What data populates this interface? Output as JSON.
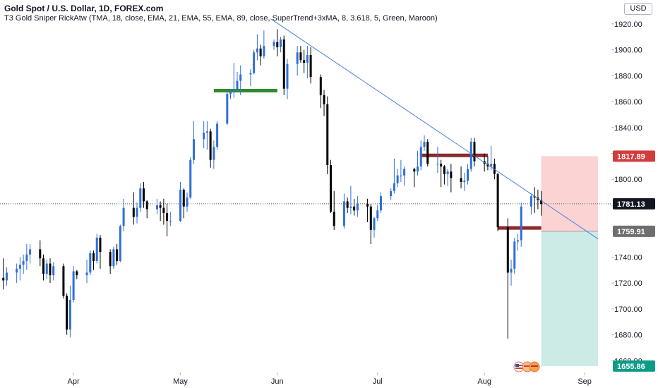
{
  "header": {
    "symbol": "Gold Spot / U.S. Dollar, 1D, FOREX.com",
    "indicator": "T3 Gold Sniper RickAtw (TMA, 18, close, EMA, 21, EMA, 55, EMA, 89, close, SuperTrend+3xMA, 8, 3.618, 5, Green, Maroon)"
  },
  "currency": "USD",
  "colors": {
    "up": "#2f6fd8",
    "down": "#000000",
    "trendline": "#4a7fe0",
    "green_level": "#2e8b2e",
    "resistance": "#8b2a2a",
    "stop_zone": "#fbd3d3",
    "target_zone": "#cdebe6",
    "price_tag": "#131722",
    "stop_tag": "#d13c3c",
    "entry_tag": "#6e6e6e",
    "target_tag": "#0b9c87"
  },
  "chart_data": {
    "type": "candlestick",
    "y_ticks": [
      "1920.00",
      "1900.00",
      "1880.00",
      "1860.00",
      "1840.00",
      "1820.00",
      "1800.00",
      "1780.00",
      "1760.00",
      "1740.00",
      "1720.00",
      "1700.00",
      "1680.00",
      "1660.00"
    ],
    "ylim": [
      1652,
      1933
    ],
    "x_ticks": [
      {
        "label": "Apr",
        "date": "2021-04-01"
      },
      {
        "label": "May",
        "date": "2021-05-03"
      },
      {
        "label": "Jun",
        "date": "2021-06-01"
      },
      {
        "label": "Jul",
        "date": "2021-07-01"
      },
      {
        "label": "Aug",
        "date": "2021-08-02"
      },
      {
        "label": "Sep",
        "date": "2021-09-01"
      }
    ],
    "xlim": [
      "2021-03-10",
      "2021-09-09"
    ],
    "price_labels": {
      "stop": "1817.89",
      "current": "1781.13",
      "entry": "1759.91",
      "target": "1655.86"
    },
    "price_values": {
      "stop": 1817.89,
      "current": 1781.13,
      "entry": 1759.91,
      "target": 1655.86
    },
    "position": {
      "type": "long",
      "start": "2021-08-19",
      "end": "2021-09-05"
    },
    "trendline": [
      {
        "date": "2021-05-30",
        "price": 1924
      },
      {
        "date": "2021-09-05",
        "price": 1754
      }
    ],
    "horizontal_levels": [
      {
        "name": "support-level-green",
        "price": 1868.5,
        "start": "2021-05-13",
        "end": "2021-06-01",
        "color": "#2e8b2e"
      },
      {
        "name": "resistance-level-july",
        "price": 1818.5,
        "start": "2021-07-14",
        "end": "2021-08-03",
        "color": "#8b2a2a"
      },
      {
        "name": "resistance-level-august",
        "price": 1762.5,
        "start": "2021-08-06",
        "end": "2021-08-19",
        "color": "#8b2a2a"
      }
    ],
    "candles": [
      {
        "date": "2021-03-11",
        "o": 1724,
        "h": 1739,
        "l": 1715,
        "c": 1722
      },
      {
        "date": "2021-03-12",
        "o": 1722,
        "h": 1732,
        "l": 1718,
        "c": 1728
      },
      {
        "date": "2021-03-15",
        "o": 1728,
        "h": 1735,
        "l": 1720,
        "c": 1731
      },
      {
        "date": "2021-03-16",
        "o": 1731,
        "h": 1740,
        "l": 1722,
        "c": 1734
      },
      {
        "date": "2021-03-17",
        "o": 1734,
        "h": 1742,
        "l": 1727,
        "c": 1737
      },
      {
        "date": "2021-03-18",
        "o": 1737,
        "h": 1750,
        "l": 1730,
        "c": 1742
      },
      {
        "date": "2021-03-19",
        "o": 1742,
        "h": 1750,
        "l": 1735,
        "c": 1746
      },
      {
        "date": "2021-03-22",
        "o": 1746,
        "h": 1753,
        "l": 1733,
        "c": 1739
      },
      {
        "date": "2021-03-23",
        "o": 1739,
        "h": 1742,
        "l": 1722,
        "c": 1727
      },
      {
        "date": "2021-03-24",
        "o": 1727,
        "h": 1738,
        "l": 1723,
        "c": 1735
      },
      {
        "date": "2021-03-25",
        "o": 1735,
        "h": 1739,
        "l": 1720,
        "c": 1726
      },
      {
        "date": "2021-03-26",
        "o": 1726,
        "h": 1736,
        "l": 1722,
        "c": 1733
      },
      {
        "date": "2021-03-29",
        "o": 1733,
        "h": 1735,
        "l": 1708,
        "c": 1710
      },
      {
        "date": "2021-03-30",
        "o": 1710,
        "h": 1712,
        "l": 1680,
        "c": 1684
      },
      {
        "date": "2021-03-31",
        "o": 1684,
        "h": 1718,
        "l": 1678,
        "c": 1707
      },
      {
        "date": "2021-04-01",
        "o": 1707,
        "h": 1733,
        "l": 1705,
        "c": 1729
      },
      {
        "date": "2021-04-02",
        "o": 1729,
        "h": 1730,
        "l": 1723,
        "c": 1726
      },
      {
        "date": "2021-04-05",
        "o": 1726,
        "h": 1738,
        "l": 1720,
        "c": 1728
      },
      {
        "date": "2021-04-06",
        "o": 1728,
        "h": 1745,
        "l": 1726,
        "c": 1743
      },
      {
        "date": "2021-04-07",
        "o": 1743,
        "h": 1745,
        "l": 1730,
        "c": 1737
      },
      {
        "date": "2021-04-08",
        "o": 1737,
        "h": 1758,
        "l": 1735,
        "c": 1755
      },
      {
        "date": "2021-04-09",
        "o": 1755,
        "h": 1757,
        "l": 1731,
        "c": 1744
      },
      {
        "date": "2021-04-12",
        "o": 1744,
        "h": 1746,
        "l": 1727,
        "c": 1733
      },
      {
        "date": "2021-04-13",
        "o": 1733,
        "h": 1748,
        "l": 1731,
        "c": 1746
      },
      {
        "date": "2021-04-14",
        "o": 1746,
        "h": 1750,
        "l": 1734,
        "c": 1737
      },
      {
        "date": "2021-04-15",
        "o": 1737,
        "h": 1765,
        "l": 1736,
        "c": 1764
      },
      {
        "date": "2021-04-16",
        "o": 1764,
        "h": 1785,
        "l": 1760,
        "c": 1778
      },
      {
        "date": "2021-04-19",
        "o": 1778,
        "h": 1790,
        "l": 1765,
        "c": 1771
      },
      {
        "date": "2021-04-20",
        "o": 1771,
        "h": 1782,
        "l": 1766,
        "c": 1778
      },
      {
        "date": "2021-04-21",
        "o": 1778,
        "h": 1797,
        "l": 1775,
        "c": 1793
      },
      {
        "date": "2021-04-22",
        "o": 1793,
        "h": 1798,
        "l": 1778,
        "c": 1783
      },
      {
        "date": "2021-04-23",
        "o": 1783,
        "h": 1784,
        "l": 1770,
        "c": 1777
      },
      {
        "date": "2021-04-26",
        "o": 1777,
        "h": 1785,
        "l": 1773,
        "c": 1780
      },
      {
        "date": "2021-04-27",
        "o": 1780,
        "h": 1783,
        "l": 1768,
        "c": 1778
      },
      {
        "date": "2021-04-28",
        "o": 1778,
        "h": 1785,
        "l": 1765,
        "c": 1774
      },
      {
        "date": "2021-04-29",
        "o": 1774,
        "h": 1781,
        "l": 1756,
        "c": 1768
      },
      {
        "date": "2021-04-30",
        "o": 1768,
        "h": 1775,
        "l": 1764,
        "c": 1768
      },
      {
        "date": "2021-05-03",
        "o": 1768,
        "h": 1798,
        "l": 1767,
        "c": 1792
      },
      {
        "date": "2021-05-04",
        "o": 1792,
        "h": 1793,
        "l": 1770,
        "c": 1779
      },
      {
        "date": "2021-05-05",
        "o": 1779,
        "h": 1790,
        "l": 1775,
        "c": 1786
      },
      {
        "date": "2021-05-06",
        "o": 1786,
        "h": 1817,
        "l": 1785,
        "c": 1815
      },
      {
        "date": "2021-05-07",
        "o": 1815,
        "h": 1845,
        "l": 1812,
        "c": 1831
      },
      {
        "date": "2021-05-10",
        "o": 1831,
        "h": 1845,
        "l": 1824,
        "c": 1836
      },
      {
        "date": "2021-05-11",
        "o": 1836,
        "h": 1845,
        "l": 1823,
        "c": 1837
      },
      {
        "date": "2021-05-12",
        "o": 1837,
        "h": 1839,
        "l": 1809,
        "c": 1815
      },
      {
        "date": "2021-05-13",
        "o": 1815,
        "h": 1830,
        "l": 1808,
        "c": 1825
      },
      {
        "date": "2021-05-14",
        "o": 1825,
        "h": 1845,
        "l": 1823,
        "c": 1843
      },
      {
        "date": "2021-05-17",
        "o": 1843,
        "h": 1868,
        "l": 1842,
        "c": 1866
      },
      {
        "date": "2021-05-18",
        "o": 1866,
        "h": 1869,
        "l": 1862,
        "c": 1868
      },
      {
        "date": "2021-05-19",
        "o": 1868,
        "h": 1890,
        "l": 1863,
        "c": 1869
      },
      {
        "date": "2021-05-20",
        "o": 1869,
        "h": 1883,
        "l": 1867,
        "c": 1876
      },
      {
        "date": "2021-05-21",
        "o": 1876,
        "h": 1888,
        "l": 1865,
        "c": 1881
      },
      {
        "date": "2021-05-24",
        "o": 1881,
        "h": 1885,
        "l": 1872,
        "c": 1882
      },
      {
        "date": "2021-05-25",
        "o": 1882,
        "h": 1900,
        "l": 1881,
        "c": 1898
      },
      {
        "date": "2021-05-26",
        "o": 1898,
        "h": 1912,
        "l": 1892,
        "c": 1901
      },
      {
        "date": "2021-05-27",
        "o": 1901,
        "h": 1904,
        "l": 1888,
        "c": 1895
      },
      {
        "date": "2021-05-28",
        "o": 1895,
        "h": 1915,
        "l": 1893,
        "c": 1903
      },
      {
        "date": "2021-05-31",
        "o": 1903,
        "h": 1908,
        "l": 1900,
        "c": 1906
      },
      {
        "date": "2021-06-01",
        "o": 1906,
        "h": 1916,
        "l": 1895,
        "c": 1902
      },
      {
        "date": "2021-06-02",
        "o": 1902,
        "h": 1910,
        "l": 1898,
        "c": 1908
      },
      {
        "date": "2021-06-03",
        "o": 1908,
        "h": 1911,
        "l": 1865,
        "c": 1870
      },
      {
        "date": "2021-06-04",
        "o": 1870,
        "h": 1893,
        "l": 1862,
        "c": 1889
      },
      {
        "date": "2021-06-07",
        "o": 1889,
        "h": 1903,
        "l": 1880,
        "c": 1898
      },
      {
        "date": "2021-06-08",
        "o": 1898,
        "h": 1903,
        "l": 1890,
        "c": 1892
      },
      {
        "date": "2021-06-09",
        "o": 1892,
        "h": 1900,
        "l": 1882,
        "c": 1890
      },
      {
        "date": "2021-06-10",
        "o": 1890,
        "h": 1903,
        "l": 1878,
        "c": 1896
      },
      {
        "date": "2021-06-11",
        "o": 1896,
        "h": 1902,
        "l": 1874,
        "c": 1879
      },
      {
        "date": "2021-06-14",
        "o": 1879,
        "h": 1881,
        "l": 1855,
        "c": 1865
      },
      {
        "date": "2021-06-15",
        "o": 1865,
        "h": 1869,
        "l": 1849,
        "c": 1858
      },
      {
        "date": "2021-06-16",
        "o": 1858,
        "h": 1864,
        "l": 1804,
        "c": 1811
      },
      {
        "date": "2021-06-17",
        "o": 1811,
        "h": 1815,
        "l": 1774,
        "c": 1775
      },
      {
        "date": "2021-06-18",
        "o": 1775,
        "h": 1791,
        "l": 1761,
        "c": 1764
      },
      {
        "date": "2021-06-21",
        "o": 1764,
        "h": 1789,
        "l": 1762,
        "c": 1783
      },
      {
        "date": "2021-06-22",
        "o": 1783,
        "h": 1786,
        "l": 1774,
        "c": 1778
      },
      {
        "date": "2021-06-23",
        "o": 1778,
        "h": 1795,
        "l": 1773,
        "c": 1779
      },
      {
        "date": "2021-06-24",
        "o": 1779,
        "h": 1785,
        "l": 1772,
        "c": 1776
      },
      {
        "date": "2021-06-25",
        "o": 1776,
        "h": 1787,
        "l": 1771,
        "c": 1781
      },
      {
        "date": "2021-06-28",
        "o": 1781,
        "h": 1785,
        "l": 1767,
        "c": 1779
      },
      {
        "date": "2021-06-29",
        "o": 1779,
        "h": 1781,
        "l": 1750,
        "c": 1761
      },
      {
        "date": "2021-06-30",
        "o": 1761,
        "h": 1771,
        "l": 1755,
        "c": 1770
      },
      {
        "date": "2021-07-01",
        "o": 1770,
        "h": 1780,
        "l": 1768,
        "c": 1776
      },
      {
        "date": "2021-07-02",
        "o": 1776,
        "h": 1790,
        "l": 1774,
        "c": 1787
      },
      {
        "date": "2021-07-05",
        "o": 1787,
        "h": 1793,
        "l": 1784,
        "c": 1791
      },
      {
        "date": "2021-07-06",
        "o": 1791,
        "h": 1816,
        "l": 1789,
        "c": 1797
      },
      {
        "date": "2021-07-07",
        "o": 1797,
        "h": 1808,
        "l": 1794,
        "c": 1803
      },
      {
        "date": "2021-07-08",
        "o": 1803,
        "h": 1815,
        "l": 1798,
        "c": 1803
      },
      {
        "date": "2021-07-09",
        "o": 1803,
        "h": 1810,
        "l": 1795,
        "c": 1808
      },
      {
        "date": "2021-07-12",
        "o": 1808,
        "h": 1809,
        "l": 1794,
        "c": 1806
      },
      {
        "date": "2021-07-13",
        "o": 1806,
        "h": 1822,
        "l": 1803,
        "c": 1810
      },
      {
        "date": "2021-07-14",
        "o": 1810,
        "h": 1830,
        "l": 1807,
        "c": 1825
      },
      {
        "date": "2021-07-15",
        "o": 1825,
        "h": 1834,
        "l": 1822,
        "c": 1829
      },
      {
        "date": "2021-07-16",
        "o": 1829,
        "h": 1831,
        "l": 1810,
        "c": 1812
      },
      {
        "date": "2021-07-19",
        "o": 1812,
        "h": 1825,
        "l": 1805,
        "c": 1812
      },
      {
        "date": "2021-07-20",
        "o": 1812,
        "h": 1815,
        "l": 1794,
        "c": 1810
      },
      {
        "date": "2021-07-21",
        "o": 1810,
        "h": 1811,
        "l": 1796,
        "c": 1804
      },
      {
        "date": "2021-07-22",
        "o": 1804,
        "h": 1808,
        "l": 1795,
        "c": 1806
      },
      {
        "date": "2021-07-23",
        "o": 1806,
        "h": 1812,
        "l": 1790,
        "c": 1801
      },
      {
        "date": "2021-07-26",
        "o": 1801,
        "h": 1810,
        "l": 1793,
        "c": 1798
      },
      {
        "date": "2021-07-27",
        "o": 1798,
        "h": 1805,
        "l": 1791,
        "c": 1799
      },
      {
        "date": "2021-07-28",
        "o": 1799,
        "h": 1812,
        "l": 1796,
        "c": 1808
      },
      {
        "date": "2021-07-29",
        "o": 1808,
        "h": 1832,
        "l": 1806,
        "c": 1829
      },
      {
        "date": "2021-07-30",
        "o": 1829,
        "h": 1832,
        "l": 1810,
        "c": 1814
      },
      {
        "date": "2021-08-02",
        "o": 1814,
        "h": 1820,
        "l": 1806,
        "c": 1812
      },
      {
        "date": "2021-08-03",
        "o": 1812,
        "h": 1818,
        "l": 1807,
        "c": 1810
      },
      {
        "date": "2021-08-04",
        "o": 1810,
        "h": 1826,
        "l": 1807,
        "c": 1812
      },
      {
        "date": "2021-08-05",
        "o": 1812,
        "h": 1816,
        "l": 1800,
        "c": 1804
      },
      {
        "date": "2021-08-06",
        "o": 1804,
        "h": 1805,
        "l": 1760,
        "c": 1763
      },
      {
        "date": "2021-08-09",
        "o": 1763,
        "h": 1770,
        "l": 1677,
        "c": 1728
      },
      {
        "date": "2021-08-10",
        "o": 1728,
        "h": 1738,
        "l": 1718,
        "c": 1731
      },
      {
        "date": "2021-08-11",
        "o": 1731,
        "h": 1755,
        "l": 1727,
        "c": 1752
      },
      {
        "date": "2021-08-12",
        "o": 1752,
        "h": 1758,
        "l": 1745,
        "c": 1753
      },
      {
        "date": "2021-08-13",
        "o": 1753,
        "h": 1782,
        "l": 1748,
        "c": 1779
      },
      {
        "date": "2021-08-16",
        "o": 1779,
        "h": 1789,
        "l": 1773,
        "c": 1787
      },
      {
        "date": "2021-08-17",
        "o": 1787,
        "h": 1794,
        "l": 1774,
        "c": 1786
      },
      {
        "date": "2021-08-18",
        "o": 1786,
        "h": 1792,
        "l": 1777,
        "c": 1784
      },
      {
        "date": "2021-08-19",
        "o": 1784,
        "h": 1791,
        "l": 1772,
        "c": 1781
      }
    ]
  }
}
